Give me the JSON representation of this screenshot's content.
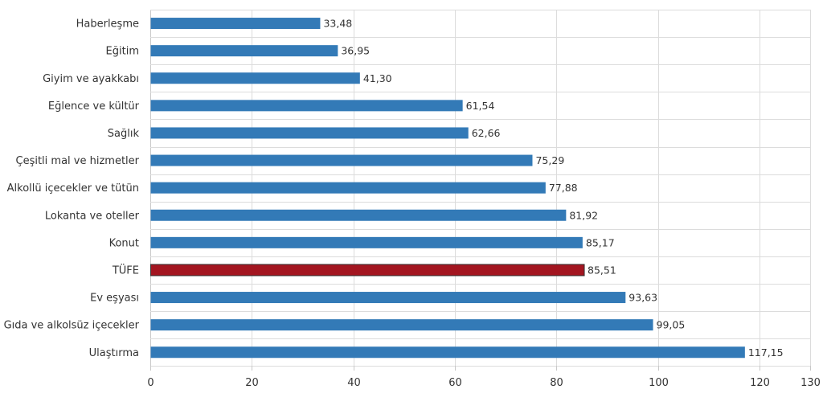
{
  "chart_data": {
    "type": "bar",
    "orientation": "horizontal",
    "categories": [
      "Haberleşme",
      "Eğitim",
      "Giyim ve ayakkabı",
      "Eğlence ve kültür",
      "Sağlık",
      "Çeşitli mal ve hizmetler",
      "Alkollü içecekler ve tütün",
      "Lokanta ve oteller",
      "Konut",
      "TÜFE",
      "Ev eşyası",
      "Gıda ve alkolsüz içecekler",
      "Ulaştırma"
    ],
    "values": [
      33.48,
      36.95,
      41.3,
      61.54,
      62.66,
      75.29,
      77.88,
      81.92,
      85.17,
      85.51,
      93.63,
      99.05,
      117.15
    ],
    "value_labels": [
      "33,48",
      "36,95",
      "41,30",
      "61,54",
      "62,66",
      "75,29",
      "77,88",
      "81,92",
      "85,17",
      "85,51",
      "93,63",
      "99,05",
      "117,15"
    ],
    "xlim": [
      0,
      130
    ],
    "xticks": [
      0,
      20,
      40,
      60,
      80,
      100,
      120,
      130
    ],
    "grid": true,
    "legend": "none",
    "colors": {
      "default": "#337ab7",
      "highlight": "#a31520",
      "highlight_category": "TÜFE"
    }
  }
}
